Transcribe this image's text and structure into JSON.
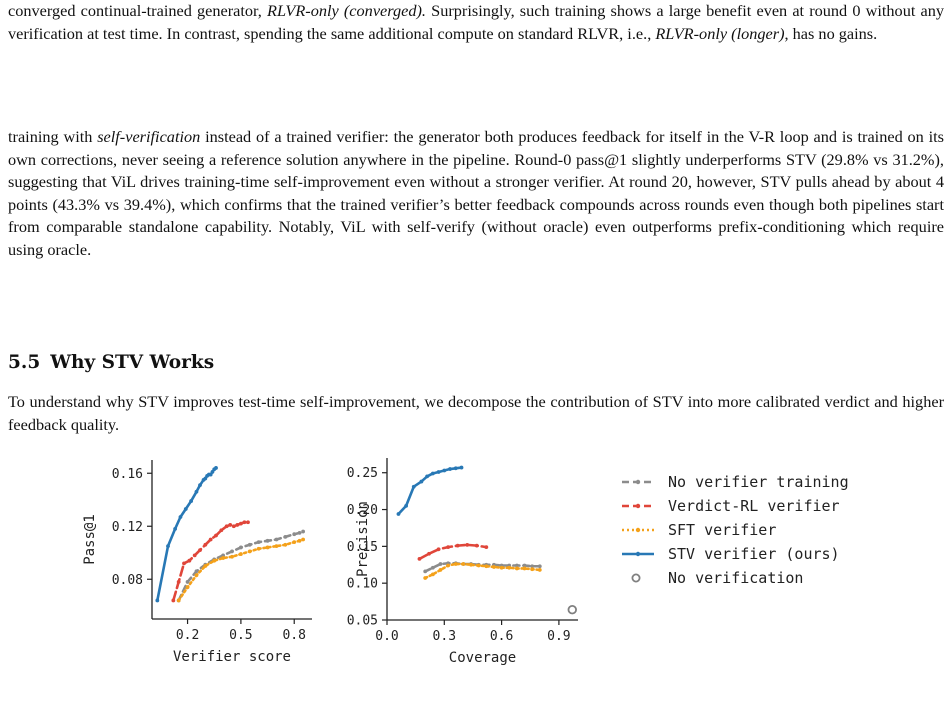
{
  "paragraph1": {
    "t1": "converged continual-trained generator, ",
    "i1": "RLVR-only (converged).",
    "t2": " Surprisingly, such training shows a large benefit even at round 0 without any verification at test time. In contrast, spending the same additional compute on standard RLVR, i.e., ",
    "i2": "RLVR-only (longer)",
    "t3": ", has no gains."
  },
  "paragraph2": {
    "t1": "training with ",
    "i1": "self-verification",
    "t2": " instead of a trained verifier: the generator both produces feedback for itself in the V-R loop and is trained on its own corrections, never seeing a reference solution anywhere in the pipeline. Round-0 pass@1 slightly underperforms STV (29.8% vs 31.2%), suggesting that ViL drives training-time self-improvement even without a stronger verifier. At round 20, however, STV pulls ahead by about 4 points (43.3% vs 39.4%), which confirms that the trained verifier’s better feedback compounds across rounds even though both pipelines start from comparable standalone capability. Notably, ViL with self-verify (without oracle) even outperforms prefix-conditioning which require using oracle."
  },
  "section": {
    "number": "5.5",
    "title": "Why STV Works"
  },
  "paragraph3": "To understand why STV improves test-time self-improvement, we decompose the contribution of STV into more calibrated verdict and higher feedback quality.",
  "chart_data": [
    {
      "type": "line",
      "xlabel": "Verifier score",
      "ylabel": "Pass@1",
      "xlim": [
        0.0,
        0.9
      ],
      "ylim": [
        0.05,
        0.17
      ],
      "xticks": [
        0.2,
        0.5,
        0.8
      ],
      "xtick_labels": [
        "0.2",
        "0.5",
        "0.8"
      ],
      "yticks": [
        0.08,
        0.12,
        0.16
      ],
      "ytick_labels": [
        "0.08",
        "0.12",
        "0.16"
      ],
      "series": [
        {
          "name": "STV verifier (ours)",
          "x": [
            0.03,
            0.09,
            0.13,
            0.16,
            0.19,
            0.22,
            0.25,
            0.27,
            0.29,
            0.3,
            0.31,
            0.32,
            0.33,
            0.34,
            0.35,
            0.36
          ],
          "y": [
            0.064,
            0.105,
            0.118,
            0.127,
            0.133,
            0.139,
            0.146,
            0.151,
            0.155,
            0.156,
            0.158,
            0.159,
            0.159,
            0.161,
            0.163,
            0.164
          ]
        },
        {
          "name": "Verdict-RL verifier",
          "x": [
            0.12,
            0.15,
            0.18,
            0.21,
            0.24,
            0.27,
            0.3,
            0.33,
            0.36,
            0.39,
            0.42,
            0.44,
            0.46,
            0.48,
            0.5,
            0.52,
            0.54
          ],
          "y": [
            0.064,
            0.078,
            0.092,
            0.094,
            0.098,
            0.102,
            0.106,
            0.11,
            0.113,
            0.117,
            0.12,
            0.121,
            0.12,
            0.121,
            0.122,
            0.123,
            0.123
          ]
        },
        {
          "name": "No verifier training",
          "x": [
            0.15,
            0.2,
            0.25,
            0.3,
            0.35,
            0.4,
            0.45,
            0.5,
            0.55,
            0.6,
            0.65,
            0.7,
            0.75,
            0.8,
            0.83,
            0.85
          ],
          "y": [
            0.064,
            0.078,
            0.086,
            0.091,
            0.095,
            0.098,
            0.101,
            0.104,
            0.106,
            0.108,
            0.109,
            0.11,
            0.112,
            0.114,
            0.115,
            0.116
          ]
        },
        {
          "name": "SFT verifier",
          "x": [
            0.15,
            0.2,
            0.25,
            0.3,
            0.35,
            0.4,
            0.45,
            0.5,
            0.55,
            0.6,
            0.65,
            0.7,
            0.75,
            0.8,
            0.83,
            0.85
          ],
          "y": [
            0.064,
            0.074,
            0.083,
            0.09,
            0.094,
            0.096,
            0.097,
            0.099,
            0.101,
            0.103,
            0.104,
            0.105,
            0.106,
            0.108,
            0.109,
            0.11
          ]
        }
      ]
    },
    {
      "type": "line",
      "xlabel": "Coverage",
      "ylabel": "Precision",
      "xlim": [
        0.0,
        1.0
      ],
      "ylim": [
        0.05,
        0.27
      ],
      "xticks": [
        0.0,
        0.3,
        0.6,
        0.9
      ],
      "xtick_labels": [
        "0.0",
        "0.3",
        "0.6",
        "0.9"
      ],
      "yticks": [
        0.05,
        0.1,
        0.15,
        0.2,
        0.25
      ],
      "ytick_labels": [
        "0.05",
        "0.10",
        "0.15",
        "0.20",
        "0.25"
      ],
      "series": [
        {
          "name": "STV verifier (ours)",
          "x": [
            0.06,
            0.1,
            0.14,
            0.18,
            0.21,
            0.24,
            0.27,
            0.3,
            0.33,
            0.36,
            0.39
          ],
          "y": [
            0.194,
            0.205,
            0.231,
            0.238,
            0.245,
            0.249,
            0.251,
            0.253,
            0.255,
            0.256,
            0.257
          ]
        },
        {
          "name": "Verdict-RL verifier",
          "x": [
            0.17,
            0.22,
            0.27,
            0.32,
            0.37,
            0.42,
            0.47,
            0.52
          ],
          "y": [
            0.133,
            0.14,
            0.146,
            0.149,
            0.151,
            0.152,
            0.151,
            0.149
          ]
        },
        {
          "name": "No verifier training",
          "x": [
            0.2,
            0.24,
            0.28,
            0.32,
            0.36,
            0.4,
            0.44,
            0.48,
            0.52,
            0.56,
            0.6,
            0.64,
            0.68,
            0.72,
            0.76,
            0.8
          ],
          "y": [
            0.116,
            0.121,
            0.126,
            0.127,
            0.127,
            0.126,
            0.126,
            0.125,
            0.125,
            0.125,
            0.124,
            0.124,
            0.124,
            0.124,
            0.123,
            0.123
          ]
        },
        {
          "name": "SFT verifier",
          "x": [
            0.2,
            0.24,
            0.28,
            0.32,
            0.36,
            0.4,
            0.44,
            0.48,
            0.52,
            0.56,
            0.6,
            0.64,
            0.68,
            0.72,
            0.76,
            0.8
          ],
          "y": [
            0.107,
            0.112,
            0.118,
            0.124,
            0.126,
            0.126,
            0.125,
            0.124,
            0.123,
            0.122,
            0.121,
            0.121,
            0.12,
            0.12,
            0.119,
            0.118
          ]
        },
        {
          "name": "No verification",
          "x": [
            0.97
          ],
          "y": [
            0.064
          ]
        }
      ]
    }
  ],
  "legend": [
    {
      "label": "No verifier training",
      "color": "#8c8c8c",
      "style": "dashed"
    },
    {
      "label": "Verdict-RL verifier",
      "color": "#e0463a",
      "style": "dashed"
    },
    {
      "label": "SFT verifier",
      "color": "#f4a11a",
      "style": "dotted"
    },
    {
      "label": "STV verifier (ours)",
      "color": "#2878b5",
      "style": "solid"
    },
    {
      "label": "No verification",
      "color": "#808080",
      "style": "hollow-marker"
    }
  ],
  "colors": {
    "stv": "#2878b5",
    "verdict_rl": "#e0463a",
    "no_training": "#8c8c8c",
    "sft": "#f4a11a",
    "no_verification": "#808080"
  }
}
